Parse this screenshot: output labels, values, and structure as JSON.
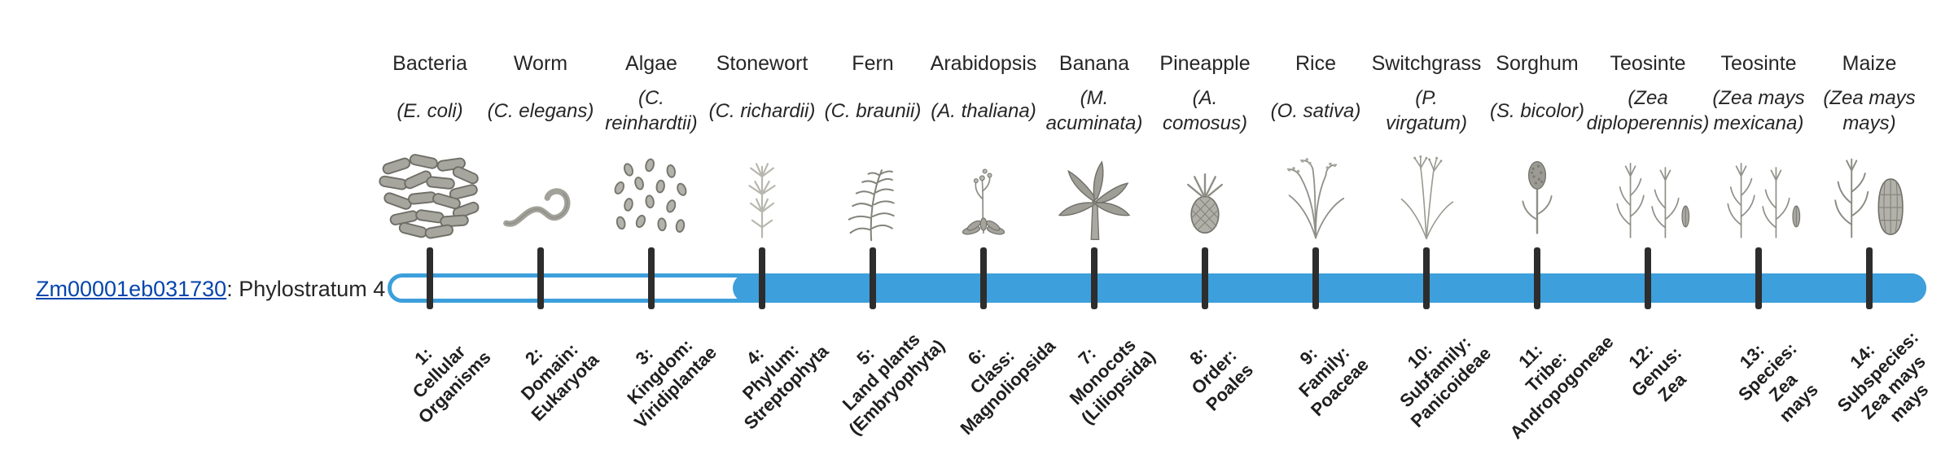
{
  "gene": {
    "id": "Zm00001eb031730",
    "label_suffix": ": Phylostratum 4",
    "phylostratum": 4
  },
  "timeline": {
    "bar_color": "#3d9fdb",
    "tick_color": "#2d2d2d",
    "filled_from_stratum": 4,
    "total_strata": 14
  },
  "colors": {
    "link": "#0645ad",
    "text": "#262626"
  },
  "species": [
    {
      "common": "Bacteria",
      "scientific": "(E. coli)",
      "icon": "bacteria",
      "stratum_label": "1:\nCellular\nOrganisms"
    },
    {
      "common": "Worm",
      "scientific": "(C. elegans)",
      "icon": "worm",
      "stratum_label": "2:\nDomain:\nEukaryota"
    },
    {
      "common": "Algae",
      "scientific": "(C.\nreinhardtii)",
      "icon": "algae",
      "stratum_label": "3:\nKingdom:\nViridiplantae"
    },
    {
      "common": "Stonewort",
      "scientific": "(C. richardii)",
      "icon": "stonewort",
      "stratum_label": "4:\nPhylum:\nStreptophyta"
    },
    {
      "common": "Fern",
      "scientific": "(C. braunii)",
      "icon": "fern",
      "stratum_label": "5:\nLand plants\n(Embryophyta)"
    },
    {
      "common": "Arabidopsis",
      "scientific": "(A. thaliana)",
      "icon": "arabidopsis",
      "stratum_label": "6:\nClass:\nMagnoliopsida"
    },
    {
      "common": "Banana",
      "scientific": "(M.\nacuminata)",
      "icon": "banana",
      "stratum_label": "7:\nMonocots\n(Liliopsida)"
    },
    {
      "common": "Pineapple",
      "scientific": "(A.\ncomosus)",
      "icon": "pineapple",
      "stratum_label": "8:\nOrder:\nPoales"
    },
    {
      "common": "Rice",
      "scientific": "(O. sativa)",
      "icon": "rice",
      "stratum_label": "9:\nFamily:\nPoaceae"
    },
    {
      "common": "Switchgrass",
      "scientific": "(P.\nvirgatum)",
      "icon": "switchgrass",
      "stratum_label": "10:\nSubfamily:\nPanicoideae"
    },
    {
      "common": "Sorghum",
      "scientific": "(S. bicolor)",
      "icon": "sorghum",
      "stratum_label": "11:\nTribe:\nAndropogoneae"
    },
    {
      "common": "Teosinte",
      "scientific": "(Zea\ndiploperennis)",
      "icon": "teosinte",
      "stratum_label": "12:\nGenus:\nZea"
    },
    {
      "common": "Teosinte",
      "scientific": "(Zea mays\nmexicana)",
      "icon": "teosinte",
      "stratum_label": "13:\nSpecies:\nZea\nmays"
    },
    {
      "common": "Maize",
      "scientific": "(Zea mays\nmays)",
      "icon": "maize",
      "stratum_label": "14:\nSubspecies:\nZea mays\nmays"
    }
  ],
  "chart_data": {
    "type": "bar",
    "orientation": "horizontal",
    "title": "Zm00001eb031730: Phylostratum 4",
    "categories": [
      "1: Cellular Organisms",
      "2: Domain: Eukaryota",
      "3: Kingdom: Viridiplantae",
      "4: Phylum: Streptophyta",
      "5: Land plants (Embryophyta)",
      "6: Class: Magnoliopsida",
      "7: Monocots (Liliopsida)",
      "8: Order: Poales",
      "9: Family: Poaceae",
      "10: Subfamily: Panicoideae",
      "11: Tribe: Andropogoneae",
      "12: Genus: Zea",
      "13: Species: Zea mays",
      "14: Subspecies: Zea mays mays"
    ],
    "series": [
      {
        "name": "Zm00001eb031730",
        "filled_strata_range": [
          4,
          14
        ],
        "unfilled_strata_range": [
          1,
          3
        ]
      }
    ],
    "annotations": [
      "Bar outline spans all strata; solid fill begins at phylostratum 4 (Phylum: Streptophyta) and extends through stratum 14"
    ],
    "legend_position": "none",
    "grid": false
  }
}
